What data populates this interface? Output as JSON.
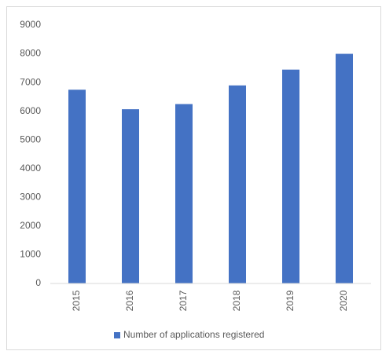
{
  "chart_data": {
    "type": "bar",
    "categories": [
      "2015",
      "2016",
      "2017",
      "2018",
      "2019",
      "2020"
    ],
    "series": [
      {
        "name": "Number of applications registered",
        "color": "#4472c4",
        "values": [
          6750,
          6070,
          6250,
          6900,
          7450,
          8000
        ]
      }
    ],
    "ylim": [
      0,
      9000
    ],
    "yticks": [
      0,
      1000,
      2000,
      3000,
      4000,
      5000,
      6000,
      7000,
      8000,
      9000
    ],
    "grid": false,
    "legend": "bottom"
  }
}
